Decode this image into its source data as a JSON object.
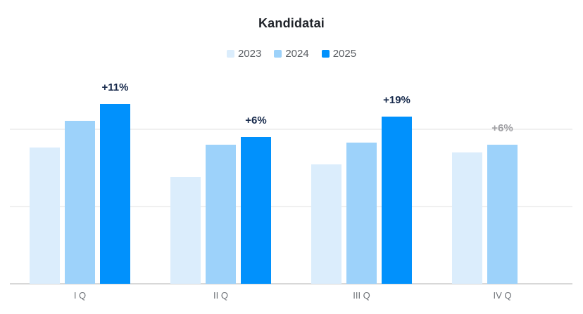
{
  "chart_data": {
    "type": "bar",
    "title": "Kandidatai",
    "xlabel": "",
    "ylabel": "",
    "categories": [
      "I Q",
      "II Q",
      "III Q",
      "IV Q"
    ],
    "series": [
      {
        "name": "2023",
        "color": "#dbedfc",
        "values": [
          88,
          69,
          77,
          85
        ]
      },
      {
        "name": "2024",
        "color": "#9dd2fa",
        "values": [
          105,
          90,
          91,
          90
        ]
      },
      {
        "name": "2025",
        "color": "#0191fc",
        "values": [
          116,
          95,
          108,
          null
        ]
      }
    ],
    "annotations": [
      {
        "category": "I Q",
        "series": "2025",
        "text": "+11%",
        "color": "#16294b"
      },
      {
        "category": "II Q",
        "series": "2025",
        "text": "+6%",
        "color": "#16294b"
      },
      {
        "category": "III Q",
        "series": "2025",
        "text": "+19%",
        "color": "#16294b"
      },
      {
        "category": "IV Q",
        "series": "2024",
        "text": "+6%",
        "color": "#9e9ea2"
      }
    ],
    "ylim": [
      0,
      130
    ],
    "y_gridlines": [
      50,
      100
    ],
    "grid": "horizontal-only, unlabeled",
    "legend_position": "top-center"
  }
}
